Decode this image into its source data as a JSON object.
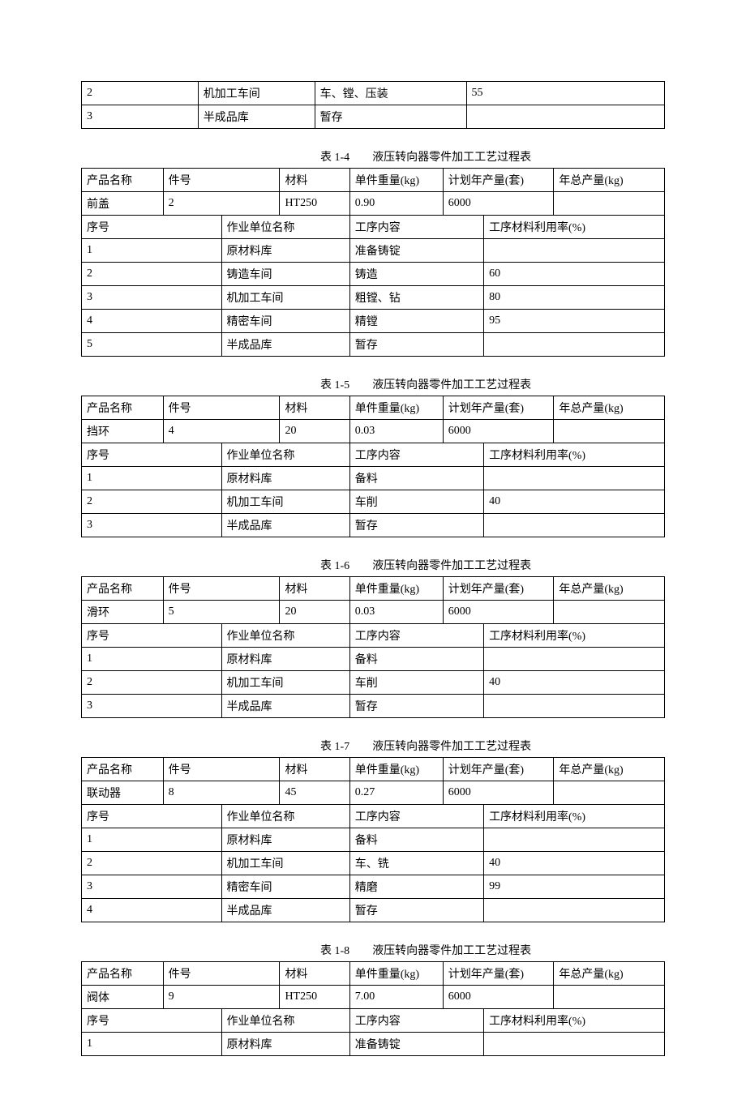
{
  "labels": {
    "product_name": "产品名称",
    "part_no": "件号",
    "material": "材料",
    "unit_weight": "单件重量(kg)",
    "plan_year_output": "计划年产量(套)",
    "year_total_weight": "年总产量(kg)",
    "seq_no": "序号",
    "work_unit": "作业单位名称",
    "process_content": "工序内容",
    "material_util": "工序材料利用率(%)"
  },
  "columns": {
    "info_widths": [
      14,
      10,
      10,
      12,
      16,
      7,
      12,
      19
    ],
    "proc_widths": [
      20,
      20,
      26,
      34
    ]
  },
  "top_rows": [
    {
      "c1": "2",
      "c2": "机加工车间",
      "c3": "车、镗、压装",
      "c4": "55"
    },
    {
      "c1": "3",
      "c2": "半成品库",
      "c3": "暂存",
      "c4": ""
    }
  ],
  "top_widths": [
    20,
    20,
    26,
    34
  ],
  "tables": [
    {
      "table_no": "表 1-4",
      "table_title": "液压转向器零件加工工艺过程表",
      "info": {
        "product_name": "前盖",
        "part_no": "2",
        "material": "HT250",
        "unit_weight": "0.90",
        "plan_year_output": "6000",
        "year_total_weight": ""
      },
      "rows": [
        {
          "seq": "1",
          "unit": "原材料库",
          "content": "准备铸锭",
          "util": ""
        },
        {
          "seq": "2",
          "unit": "铸造车间",
          "content": "铸造",
          "util": "60"
        },
        {
          "seq": "3",
          "unit": "机加工车间",
          "content": "粗镗、钻",
          "util": "80"
        },
        {
          "seq": "4",
          "unit": "精密车间",
          "content": "精镗",
          "util": "95"
        },
        {
          "seq": "5",
          "unit": "半成品库",
          "content": "暂存",
          "util": ""
        }
      ]
    },
    {
      "table_no": "表 1-5",
      "table_title": "液压转向器零件加工工艺过程表",
      "info": {
        "product_name": "挡环",
        "part_no": "4",
        "material": "20",
        "unit_weight": "0.03",
        "plan_year_output": "6000",
        "year_total_weight": ""
      },
      "rows": [
        {
          "seq": "1",
          "unit": "原材料库",
          "content": "备料",
          "util": ""
        },
        {
          "seq": "2",
          "unit": "机加工车间",
          "content": "车削",
          "util": "40"
        },
        {
          "seq": "3",
          "unit": "半成品库",
          "content": "暂存",
          "util": ""
        }
      ]
    },
    {
      "table_no": "表 1-6",
      "table_title": "液压转向器零件加工工艺过程表",
      "info": {
        "product_name": "滑环",
        "part_no": "5",
        "material": "20",
        "unit_weight": "0.03",
        "plan_year_output": "6000",
        "year_total_weight": ""
      },
      "rows": [
        {
          "seq": "1",
          "unit": "原材料库",
          "content": "备料",
          "util": ""
        },
        {
          "seq": "2",
          "unit": "机加工车间",
          "content": "车削",
          "util": "40"
        },
        {
          "seq": "3",
          "unit": "半成品库",
          "content": "暂存",
          "util": ""
        }
      ]
    },
    {
      "table_no": "表 1-7",
      "table_title": "液压转向器零件加工工艺过程表",
      "info": {
        "product_name": "联动器",
        "part_no": "8",
        "material": "45",
        "unit_weight": "0.27",
        "plan_year_output": "6000",
        "year_total_weight": ""
      },
      "rows": [
        {
          "seq": "1",
          "unit": "原材料库",
          "content": "备料",
          "util": ""
        },
        {
          "seq": "2",
          "unit": "机加工车间",
          "content": "车、铣",
          "util": "40"
        },
        {
          "seq": "3",
          "unit": "精密车间",
          "content": "精磨",
          "util": "99"
        },
        {
          "seq": "4",
          "unit": "半成品库",
          "content": "暂存",
          "util": ""
        }
      ]
    },
    {
      "table_no": "表 1-8",
      "table_title": "液压转向器零件加工工艺过程表",
      "info": {
        "product_name": "阀体",
        "part_no": "9",
        "material": "HT250",
        "unit_weight": "7.00",
        "plan_year_output": "6000",
        "year_total_weight": ""
      },
      "rows": [
        {
          "seq": "1",
          "unit": "原材料库",
          "content": "准备铸锭",
          "util": ""
        }
      ]
    }
  ]
}
